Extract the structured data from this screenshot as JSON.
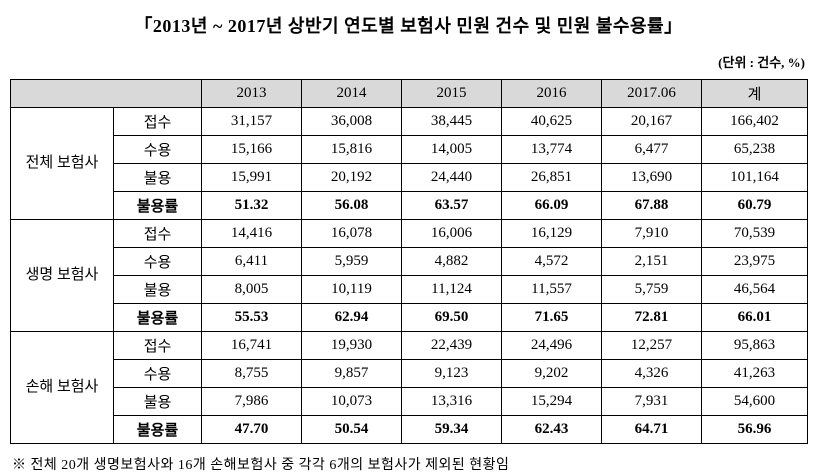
{
  "title": "「2013년 ~ 2017년 상반기 연도별 보험사 민원 건수 및 민원 불수용률」",
  "unit_label": "(단위 : 건수, %)",
  "table": {
    "year_headers": [
      "2013",
      "2014",
      "2015",
      "2016",
      "2017.06",
      "계"
    ],
    "groups": [
      {
        "name": "전체\n보험사",
        "rows": [
          {
            "label": "접수",
            "bold": false,
            "values": [
              "31,157",
              "36,008",
              "38,445",
              "40,625",
              "20,167",
              "166,402"
            ]
          },
          {
            "label": "수용",
            "bold": false,
            "values": [
              "15,166",
              "15,816",
              "14,005",
              "13,774",
              "6,477",
              "65,238"
            ]
          },
          {
            "label": "불용",
            "bold": false,
            "values": [
              "15,991",
              "20,192",
              "24,440",
              "26,851",
              "13,690",
              "101,164"
            ]
          },
          {
            "label": "불용률",
            "bold": true,
            "values": [
              "51.32",
              "56.08",
              "63.57",
              "66.09",
              "67.88",
              "60.79"
            ]
          }
        ]
      },
      {
        "name": "생명\n보험사",
        "rows": [
          {
            "label": "접수",
            "bold": false,
            "values": [
              "14,416",
              "16,078",
              "16,006",
              "16,129",
              "7,910",
              "70,539"
            ]
          },
          {
            "label": "수용",
            "bold": false,
            "values": [
              "6,411",
              "5,959",
              "4,882",
              "4,572",
              "2,151",
              "23,975"
            ]
          },
          {
            "label": "불용",
            "bold": false,
            "values": [
              "8,005",
              "10,119",
              "11,124",
              "11,557",
              "5,759",
              "46,564"
            ]
          },
          {
            "label": "불용률",
            "bold": true,
            "values": [
              "55.53",
              "62.94",
              "69.50",
              "71.65",
              "72.81",
              "66.01"
            ]
          }
        ]
      },
      {
        "name": "손해\n보험사",
        "rows": [
          {
            "label": "접수",
            "bold": false,
            "values": [
              "16,741",
              "19,930",
              "22,439",
              "24,496",
              "12,257",
              "95,863"
            ]
          },
          {
            "label": "수용",
            "bold": false,
            "values": [
              "8,755",
              "9,857",
              "9,123",
              "9,202",
              "4,326",
              "41,263"
            ]
          },
          {
            "label": "불용",
            "bold": false,
            "values": [
              "7,986",
              "10,073",
              "13,316",
              "15,294",
              "7,931",
              "54,600"
            ]
          },
          {
            "label": "불용률",
            "bold": true,
            "values": [
              "47.70",
              "50.54",
              "59.34",
              "62.43",
              "64.71",
              "56.96"
            ]
          }
        ]
      }
    ]
  },
  "footnote": "※ 전체 20개 생명보험사와 16개 손해보험사 중 각각 6개의 보험사가 제외된 현황임",
  "colors": {
    "header_bg": "#d9d9d9",
    "border": "#000000",
    "text": "#000000"
  }
}
